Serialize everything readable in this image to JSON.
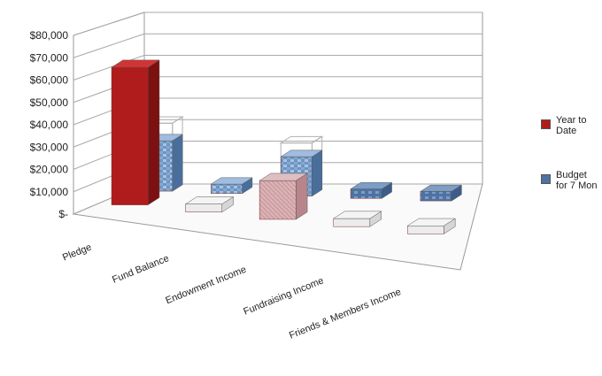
{
  "chart_data": {
    "type": "bar",
    "three_d": true,
    "categories": [
      "Pledge",
      "Fund Balance",
      "Endowment Income",
      "Fundraising Income",
      "Friends & Members Income"
    ],
    "series": [
      {
        "name": "Year to Date",
        "color": "#b01c1c",
        "values": [
          71000,
          0,
          20000,
          0,
          0
        ]
      },
      {
        "name": "Budget for 7 Mon",
        "color": "#5b86b8",
        "values": [
          32000,
          0,
          25000,
          0,
          0
        ]
      }
    ],
    "y_tick_labels": [
      "$-",
      "$10,000",
      "$20,000",
      "$30,000",
      "$40,000",
      "$50,000",
      "$60,000",
      "$70,000",
      "$80,000"
    ],
    "ylim": [
      0,
      80000
    ],
    "grid": true,
    "legend_position": "right",
    "title": "",
    "xlabel": "",
    "ylabel": ""
  }
}
